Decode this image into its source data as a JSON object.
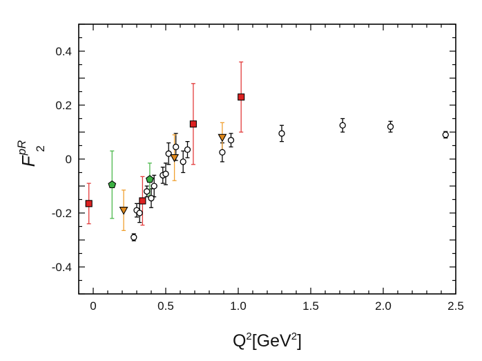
{
  "chart_data": {
    "type": "scatter",
    "xlabel": {
      "base": "Q",
      "sup1": "2",
      "mid": "[GeV",
      "sup2": "2",
      "end": "]"
    },
    "ylabel": {
      "main": "F",
      "sup": "pR",
      "sub": "2"
    },
    "xlim": [
      -0.1,
      2.5
    ],
    "ylim": [
      -0.5,
      0.5
    ],
    "x_ticks": [
      {
        "value": 0,
        "label": "0"
      },
      {
        "value": 0.5,
        "label": "0.5"
      },
      {
        "value": 1.0,
        "label": "1.0"
      },
      {
        "value": 1.5,
        "label": "1.5"
      },
      {
        "value": 2.0,
        "label": "2.0"
      },
      {
        "value": 2.5,
        "label": "2.5"
      }
    ],
    "y_ticks": [
      {
        "value": 0.4,
        "label": "0.4"
      },
      {
        "value": 0.2,
        "label": "0.2"
      },
      {
        "value": 0,
        "label": "0"
      },
      {
        "value": -0.2,
        "label": "-0.2"
      },
      {
        "value": -0.4,
        "label": "-0.4"
      }
    ],
    "grid": false,
    "legend": "none",
    "series": [
      {
        "marker": "circle",
        "fill": "#ffffff",
        "stroke": "#000000",
        "errorbar_color": "#000000",
        "points": [
          {
            "x": 0.28,
            "y": -0.29,
            "err": 0.013
          },
          {
            "x": 0.3,
            "y": -0.19,
            "err": 0.025
          },
          {
            "x": 0.32,
            "y": -0.2,
            "err": 0.035
          },
          {
            "x": 0.37,
            "y": -0.12,
            "err": 0.02
          },
          {
            "x": 0.4,
            "y": -0.145,
            "err": 0.035
          },
          {
            "x": 0.42,
            "y": -0.1,
            "err": 0.04
          },
          {
            "x": 0.48,
            "y": -0.06,
            "err": 0.03
          },
          {
            "x": 0.5,
            "y": -0.055,
            "err": 0.04
          },
          {
            "x": 0.52,
            "y": 0.02,
            "err": 0.04
          },
          {
            "x": 0.57,
            "y": 0.045,
            "err": 0.05
          },
          {
            "x": 0.62,
            "y": -0.01,
            "err": 0.04
          },
          {
            "x": 0.65,
            "y": 0.035,
            "err": 0.03
          },
          {
            "x": 0.89,
            "y": 0.025,
            "err": 0.035
          },
          {
            "x": 0.95,
            "y": 0.07,
            "err": 0.025
          },
          {
            "x": 1.3,
            "y": 0.095,
            "err": 0.03
          },
          {
            "x": 1.72,
            "y": 0.125,
            "err": 0.025
          },
          {
            "x": 2.05,
            "y": 0.12,
            "err": 0.02
          },
          {
            "x": 2.43,
            "y": 0.09,
            "err": 0.012
          }
        ]
      },
      {
        "marker": "square",
        "fill": "#dd2222",
        "stroke": "#000000",
        "errorbar_color": "#e23a3a",
        "points": [
          {
            "x": -0.03,
            "y": -0.165,
            "err": 0.075
          },
          {
            "x": 0.34,
            "y": -0.155,
            "err": 0.09
          },
          {
            "x": 0.69,
            "y": 0.13,
            "err": 0.15
          },
          {
            "x": 1.02,
            "y": 0.23,
            "err": 0.13
          }
        ]
      },
      {
        "marker": "pentagon",
        "fill": "#3cb043",
        "stroke": "#000000",
        "errorbar_color": "#4cb84c",
        "points": [
          {
            "x": 0.13,
            "y": -0.095,
            "err": 0.125
          },
          {
            "x": 0.39,
            "y": -0.075,
            "err": 0.06
          }
        ]
      },
      {
        "marker": "triangle-down",
        "fill": "#e08a1e",
        "stroke": "#000000",
        "errorbar_color": "#f0a030",
        "points": [
          {
            "x": 0.21,
            "y": -0.19,
            "err": 0.075
          },
          {
            "x": 0.56,
            "y": 0.005,
            "err": 0.085
          },
          {
            "x": 0.89,
            "y": 0.08,
            "err": 0.055
          }
        ]
      }
    ]
  }
}
